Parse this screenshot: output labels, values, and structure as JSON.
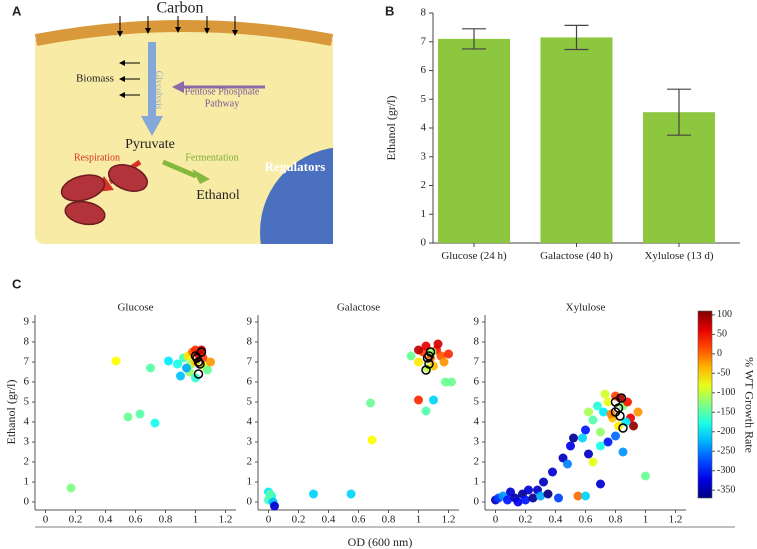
{
  "diagram": {
    "panel_label": "A",
    "carbon": "Carbon",
    "glycolysis": "Glycolysis",
    "pentose_phosphate": [
      "Pentose Phosphate",
      "Pathway"
    ],
    "biomass": "Biomass",
    "pyruvate": "Pyruvate",
    "respiration": "Respiration",
    "fermentation": "Fermentation",
    "ethanol": "Ethanol",
    "regulators": "Regulators"
  },
  "chart_data": [
    {
      "type": "bar",
      "panel_label": "B",
      "ylabel": "Ethanol (gr/l)",
      "categories": [
        "Glucose (24 h)",
        "Galactose (40 h)",
        "Xylulose (13 d)"
      ],
      "values": [
        7.1,
        7.15,
        4.55
      ],
      "errors": [
        0.35,
        0.42,
        0.8
      ],
      "color": "#8dc63f",
      "ylim": [
        0,
        8
      ],
      "yticks": [
        0,
        1,
        2,
        3,
        4,
        5,
        6,
        7,
        8
      ]
    },
    {
      "type": "scatter",
      "panel_label": "C",
      "title": "Glucose",
      "ylabel": "Ethanol (gr/l)",
      "xlim": [
        -0.07,
        1.27
      ],
      "ylim": [
        -0.4,
        9.35
      ],
      "xticks": [
        0,
        0.2,
        0.4,
        0.6,
        0.8,
        1,
        1.2
      ],
      "yticks": [
        0,
        1,
        2,
        3,
        4,
        5,
        6,
        7,
        8,
        9
      ],
      "points": {
        "x": [
          0.17,
          0.47,
          0.55,
          0.63,
          0.73,
          0.7,
          0.82,
          0.88,
          0.9,
          0.92,
          0.95,
          0.96,
          0.98,
          1.0,
          1.02,
          1.05,
          1.06,
          1.08,
          1.1,
          0.97,
          1.0,
          1.04,
          1.0,
          0.94
        ],
        "y": [
          0.7,
          7.05,
          4.25,
          4.4,
          3.95,
          6.7,
          7.05,
          6.9,
          6.3,
          7.2,
          7.3,
          6.5,
          7.5,
          7.6,
          7.4,
          7.2,
          6.8,
          6.6,
          7.0,
          6.9,
          6.2,
          7.6,
          7.0,
          6.7
        ],
        "c": [
          -130,
          -70,
          -140,
          -150,
          -180,
          -150,
          -200,
          -180,
          -220,
          -160,
          -60,
          -120,
          0,
          30,
          70,
          20,
          -80,
          -140,
          -20,
          -110,
          -170,
          80,
          -40,
          -230
        ]
      },
      "reference": {
        "color": "#000000",
        "x": [
          1.0,
          1.02,
          1.03,
          1.04,
          1.02,
          1.01
        ],
        "y": [
          7.3,
          7.0,
          6.9,
          7.5,
          6.4,
          7.2
        ]
      }
    },
    {
      "type": "scatter",
      "title": "Galactose",
      "xlabel": "OD (600 nm)",
      "xlim": [
        -0.07,
        1.27
      ],
      "ylim": [
        -0.4,
        9.35
      ],
      "xticks": [
        0,
        0.2,
        0.4,
        0.6,
        0.8,
        1,
        1.2
      ],
      "yticks": [
        0,
        1,
        2,
        3,
        4,
        5,
        6,
        7,
        8,
        9
      ],
      "points": {
        "x": [
          0.0,
          0.02,
          0.0,
          0.03,
          0.04,
          0.01,
          0.3,
          0.55,
          0.68,
          0.69,
          1.0,
          1.05,
          1.1,
          1.18,
          1.22,
          0.95,
          1.0,
          1.03,
          1.05,
          1.08,
          1.1,
          1.12,
          1.15,
          1.17,
          1.2,
          1.06,
          1.0,
          1.13,
          1.09
        ],
        "y": [
          0.5,
          0.3,
          0.1,
          0.0,
          -0.2,
          0.4,
          0.4,
          0.4,
          4.95,
          3.1,
          5.1,
          4.55,
          5.1,
          6.0,
          6.0,
          7.3,
          7.0,
          7.5,
          7.8,
          7.2,
          6.8,
          7.6,
          7.3,
          7.0,
          7.4,
          6.7,
          7.6,
          7.9,
          7.5
        ],
        "c": [
          -200,
          -190,
          -160,
          -220,
          -330,
          -150,
          -210,
          -210,
          -140,
          -70,
          30,
          -150,
          -210,
          -140,
          -140,
          -140,
          -60,
          20,
          60,
          0,
          -40,
          40,
          10,
          -20,
          30,
          -100,
          80,
          70,
          -120
        ]
      },
      "reference": {
        "color": "#000000",
        "x": [
          1.06,
          1.07,
          1.08,
          1.05,
          1.07
        ],
        "y": [
          7.2,
          6.9,
          7.5,
          6.6,
          7.3
        ]
      }
    },
    {
      "type": "scatter",
      "title": "Xylulose",
      "xlim": [
        -0.07,
        1.27
      ],
      "ylim": [
        -0.4,
        9.35
      ],
      "xticks": [
        0,
        0.2,
        0.4,
        0.6,
        0.8,
        1,
        1.2
      ],
      "yticks": [
        0,
        1,
        2,
        3,
        4,
        5,
        6,
        7,
        8,
        9
      ],
      "points": {
        "x": [
          0.0,
          0.02,
          0.05,
          0.08,
          0.1,
          0.13,
          0.15,
          0.18,
          0.2,
          0.22,
          0.25,
          0.28,
          0.3,
          0.32,
          0.35,
          0.38,
          0.42,
          0.45,
          0.48,
          0.5,
          0.52,
          0.55,
          0.6,
          0.6,
          0.62,
          0.65,
          0.65,
          0.7,
          0.7,
          0.72,
          0.75,
          0.75,
          0.78,
          0.8,
          0.82,
          0.85,
          0.85,
          0.88,
          0.9,
          0.92,
          0.95,
          1.0,
          0.68,
          0.73,
          0.77,
          0.83,
          0.87,
          0.62,
          0.58,
          0.8,
          0.7
        ],
        "y": [
          0.1,
          0.2,
          0.3,
          0.1,
          0.5,
          0.2,
          0.0,
          0.4,
          0.1,
          0.6,
          0.2,
          0.6,
          0.3,
          1.0,
          0.4,
          1.5,
          0.2,
          2.2,
          1.9,
          2.8,
          3.2,
          0.3,
          0.3,
          3.6,
          2.4,
          2.0,
          4.1,
          0.9,
          3.5,
          4.5,
          3.0,
          5.0,
          4.2,
          5.3,
          3.8,
          4.8,
          2.5,
          5.0,
          4.2,
          3.8,
          4.5,
          1.3,
          4.8,
          5.4,
          4.4,
          5.2,
          4.0,
          4.5,
          3.2,
          3.3,
          2.8
        ],
        "c": [
          -340,
          -280,
          -240,
          -300,
          -330,
          -350,
          -320,
          -360,
          -300,
          -330,
          -360,
          -340,
          -230,
          -340,
          -370,
          -330,
          -280,
          -340,
          -250,
          -320,
          -360,
          0,
          -210,
          -300,
          -340,
          -80,
          -150,
          -330,
          -120,
          -200,
          -300,
          -80,
          -40,
          20,
          -60,
          -130,
          -240,
          40,
          60,
          100,
          -20,
          -140,
          -170,
          -90,
          -10,
          90,
          -200,
          -110,
          -210,
          -260,
          -180
        ]
      },
      "reference": {
        "color": "#000000",
        "x": [
          0.8,
          0.82,
          0.83,
          0.84,
          0.8,
          0.85
        ],
        "y": [
          5.0,
          4.7,
          4.3,
          5.2,
          4.5,
          3.7
        ]
      },
      "colorbar": {
        "label": "% WT Growth Rate",
        "colormap": "jet",
        "clim": [
          -370,
          110
        ],
        "ticks": [
          100,
          50,
          0,
          -50,
          -100,
          -150,
          -200,
          -250,
          -300,
          -350
        ]
      }
    }
  ]
}
